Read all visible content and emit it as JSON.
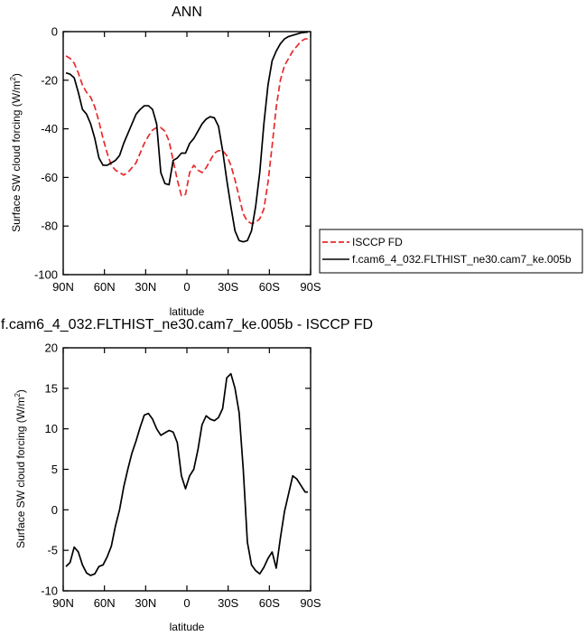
{
  "chart_data": [
    {
      "type": "line",
      "title": "ANN",
      "xlabel": "latitude",
      "ylabel": "Surface SW cloud forcing (W/m",
      "ylabel_sup": "2",
      "ylabel_close": ")",
      "x_tick_values": [
        90,
        60,
        30,
        0,
        -30,
        -60,
        -90
      ],
      "x_tick_labels": [
        "90N",
        "60N",
        "30N",
        "0",
        "30S",
        "60S",
        "90S"
      ],
      "xlim": [
        90,
        -90
      ],
      "ylim": [
        -100,
        0
      ],
      "y_ticks": [
        0,
        -20,
        -40,
        -60,
        -80,
        -100
      ],
      "grid": false,
      "legend": "right",
      "series": [
        {
          "name": "ISCCP FD",
          "color": "#e8292a",
          "dash": "dashed",
          "x": [
            88,
            85,
            82,
            79,
            76,
            73,
            70,
            67,
            64,
            61,
            58,
            55,
            52,
            49,
            46,
            43,
            40,
            37,
            34,
            31,
            28,
            25,
            22,
            19,
            16,
            13,
            10,
            7,
            4,
            1,
            -2,
            -5,
            -8,
            -11,
            -14,
            -17,
            -20,
            -23,
            -26,
            -29,
            -32,
            -35,
            -38,
            -41,
            -44,
            -47,
            -50,
            -53,
            -56,
            -59,
            -62,
            -65,
            -68,
            -71,
            -74,
            -77,
            -80,
            -83,
            -86,
            -88
          ],
          "y": [
            -10,
            -11,
            -13,
            -17,
            -22,
            -25,
            -27,
            -31,
            -37,
            -44,
            -50,
            -55,
            -57,
            -58,
            -59,
            -58,
            -56,
            -54,
            -50,
            -46,
            -43,
            -40.5,
            -39.5,
            -39.5,
            -41,
            -45,
            -53,
            -61,
            -67.5,
            -67,
            -58,
            -55,
            -57,
            -58,
            -56,
            -53,
            -50,
            -49,
            -49,
            -51,
            -55,
            -61,
            -68,
            -75,
            -78,
            -79,
            -78.5,
            -77,
            -73,
            -62,
            -47,
            -31,
            -20,
            -14,
            -11,
            -8,
            -6,
            -4,
            -3,
            -3
          ]
        },
        {
          "name": "f.cam6_4_032.FLTHIST_ne30.cam7_ke.005b",
          "color": "#000000",
          "dash": "solid",
          "x": [
            88,
            85,
            82,
            79,
            76,
            73,
            70,
            67,
            64,
            61,
            58,
            55,
            52,
            49,
            46,
            43,
            40,
            37,
            34,
            31,
            28,
            25,
            22,
            19,
            16,
            13,
            10,
            7,
            4,
            1,
            -2,
            -5,
            -8,
            -11,
            -14,
            -17,
            -20,
            -23,
            -26,
            -29,
            -32,
            -35,
            -38,
            -41,
            -44,
            -47,
            -50,
            -53,
            -56,
            -59,
            -62,
            -65,
            -68,
            -71,
            -74,
            -77,
            -80,
            -83,
            -86,
            -88
          ],
          "y": [
            -17,
            -17.5,
            -19,
            -25,
            -32,
            -34,
            -38,
            -44,
            -52,
            -55,
            -55,
            -54,
            -53,
            -51,
            -46,
            -42,
            -38,
            -34,
            -32,
            -30.5,
            -30.5,
            -32,
            -38,
            -58,
            -62.5,
            -63,
            -53,
            -52,
            -50,
            -50,
            -46,
            -44,
            -41,
            -38,
            -36,
            -35,
            -35.5,
            -39,
            -49,
            -61,
            -72,
            -82,
            -86,
            -86.5,
            -86,
            -82,
            -72,
            -58,
            -38,
            -22,
            -12,
            -8,
            -5,
            -3,
            -2,
            -1.5,
            -1,
            -0.5,
            -0.3,
            -0.2
          ]
        }
      ]
    },
    {
      "type": "line",
      "title": "f.cam6_4_032.FLTHIST_ne30.cam7_ke.005b - ISCCP FD",
      "xlabel": "latitude",
      "ylabel": "Surface SW cloud forcing (W/m",
      "ylabel_sup": "2",
      "ylabel_close": ")",
      "x_tick_values": [
        90,
        60,
        30,
        0,
        -30,
        -60,
        -90
      ],
      "x_tick_labels": [
        "90N",
        "60N",
        "30N",
        "0",
        "30S",
        "60S",
        "90S"
      ],
      "xlim": [
        90,
        -90
      ],
      "ylim": [
        -10,
        20
      ],
      "y_ticks": [
        20,
        15,
        10,
        5,
        0,
        -5,
        -10
      ],
      "grid": false,
      "series": [
        {
          "color": "#000000",
          "dash": "solid",
          "x": [
            88,
            85,
            82,
            79,
            76,
            73,
            70,
            67,
            64,
            61,
            58,
            55,
            52,
            49,
            46,
            43,
            40,
            37,
            34,
            31,
            28,
            25,
            22,
            19,
            16,
            13,
            10,
            7,
            4,
            1,
            -2,
            -5,
            -8,
            -11,
            -14,
            -17,
            -20,
            -23,
            -26,
            -29,
            -32,
            -35,
            -38,
            -41,
            -44,
            -47,
            -50,
            -53,
            -56,
            -59,
            -62,
            -65,
            -68,
            -71,
            -74,
            -77,
            -80,
            -83,
            -86,
            -88
          ],
          "y": [
            -7,
            -6.5,
            -4.6,
            -5.2,
            -6.8,
            -7.8,
            -8.1,
            -7.9,
            -7,
            -6.8,
            -5.8,
            -4.5,
            -2,
            0,
            2.8,
            5,
            7,
            8.5,
            10.2,
            11.7,
            11.9,
            11.2,
            10,
            9.2,
            9.5,
            9.8,
            9.6,
            8.3,
            4.2,
            2.6,
            4.2,
            5,
            7.4,
            10.5,
            11.6,
            11.2,
            11,
            11.4,
            12.5,
            16.3,
            16.8,
            15,
            12,
            5,
            -4,
            -6.8,
            -7.5,
            -7.9,
            -7.1,
            -6,
            -5.2,
            -7.2,
            -3.5,
            -0.2,
            2,
            4.2,
            3.8,
            3,
            2.2,
            2.2
          ]
        }
      ]
    }
  ]
}
